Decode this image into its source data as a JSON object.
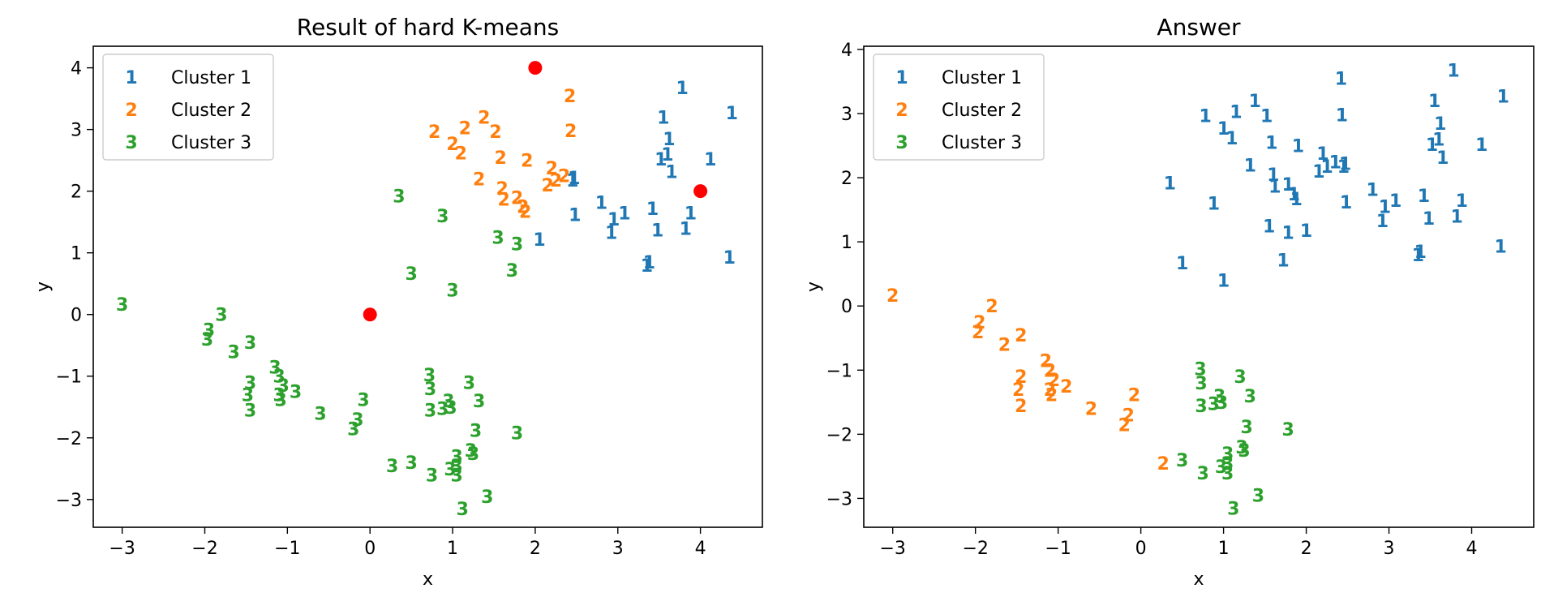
{
  "colors": {
    "cluster1": "#1f77b4",
    "cluster2": "#ff7f0e",
    "cluster3": "#2ca02c",
    "center": "#ff0000",
    "axis": "#000000",
    "legend_border": "#cccccc"
  },
  "chart_data": [
    {
      "type": "scatter",
      "title": "Result of hard K-means",
      "xlabel": "x",
      "ylabel": "y",
      "xlim": [
        -3.35,
        4.75
      ],
      "ylim": [
        -3.45,
        4.35
      ],
      "xticks": [
        -3,
        -2,
        -1,
        0,
        1,
        2,
        3,
        4
      ],
      "yticks": [
        -3,
        -2,
        -1,
        0,
        1,
        2,
        3,
        4
      ],
      "grid": false,
      "legend_position": "top-left",
      "marker_style": "cluster number glyph",
      "series": [
        {
          "name": "Cluster 1",
          "marker": "1",
          "points": [
            [
              2.45,
              2.18
            ],
            [
              2.48,
              1.62
            ],
            [
              2.05,
              1.22
            ],
            [
              2.8,
              1.82
            ],
            [
              2.92,
              1.33
            ],
            [
              2.95,
              1.55
            ],
            [
              3.08,
              1.65
            ],
            [
              3.35,
              0.8
            ],
            [
              3.38,
              0.85
            ],
            [
              3.42,
              1.72
            ],
            [
              3.48,
              1.37
            ],
            [
              3.52,
              2.52
            ],
            [
              3.55,
              3.2
            ],
            [
              3.6,
              2.6
            ],
            [
              3.62,
              2.85
            ],
            [
              3.65,
              2.32
            ],
            [
              3.78,
              3.68
            ],
            [
              3.82,
              1.4
            ],
            [
              3.88,
              1.65
            ],
            [
              4.12,
              2.52
            ],
            [
              4.35,
              0.93
            ],
            [
              4.38,
              3.27
            ],
            [
              2.47,
              2.22
            ]
          ]
        },
        {
          "name": "Cluster 2",
          "marker": "2",
          "points": [
            [
              0.78,
              2.97
            ],
            [
              1.0,
              2.77
            ],
            [
              1.1,
              2.62
            ],
            [
              1.15,
              3.03
            ],
            [
              1.32,
              2.2
            ],
            [
              1.38,
              3.2
            ],
            [
              1.52,
              2.97
            ],
            [
              1.58,
              2.55
            ],
            [
              1.6,
              2.05
            ],
            [
              1.62,
              1.87
            ],
            [
              1.78,
              1.9
            ],
            [
              1.85,
              1.75
            ],
            [
              1.88,
              1.67
            ],
            [
              1.9,
              2.5
            ],
            [
              2.15,
              2.1
            ],
            [
              2.2,
              2.38
            ],
            [
              2.25,
              2.18
            ],
            [
              2.35,
              2.25
            ],
            [
              2.42,
              3.55
            ],
            [
              2.43,
              2.98
            ]
          ]
        },
        {
          "name": "Cluster 3",
          "marker": "3",
          "points": [
            [
              -3.0,
              0.17
            ],
            [
              -1.97,
              -0.4
            ],
            [
              -1.95,
              -0.25
            ],
            [
              -1.8,
              0.0
            ],
            [
              -1.65,
              -0.6
            ],
            [
              -1.45,
              -0.45
            ],
            [
              -1.45,
              -1.1
            ],
            [
              -1.48,
              -1.3
            ],
            [
              -1.45,
              -1.55
            ],
            [
              -1.15,
              -0.85
            ],
            [
              -1.1,
              -1.0
            ],
            [
              -1.05,
              -1.15
            ],
            [
              -1.1,
              -1.3
            ],
            [
              -1.08,
              -1.38
            ],
            [
              -0.9,
              -1.25
            ],
            [
              -0.6,
              -1.6
            ],
            [
              -0.15,
              -1.7
            ],
            [
              -0.2,
              -1.85
            ],
            [
              -0.08,
              -1.38
            ],
            [
              0.27,
              -2.45
            ],
            [
              0.35,
              1.92
            ],
            [
              0.5,
              -2.4
            ],
            [
              0.5,
              0.67
            ],
            [
              0.72,
              -0.98
            ],
            [
              0.73,
              -1.2
            ],
            [
              0.73,
              -1.55
            ],
            [
              0.75,
              -2.6
            ],
            [
              0.88,
              -1.52
            ],
            [
              0.88,
              1.6
            ],
            [
              0.95,
              -1.4
            ],
            [
              0.98,
              -1.5
            ],
            [
              0.97,
              -2.5
            ],
            [
              1.0,
              0.4
            ],
            [
              1.05,
              -2.3
            ],
            [
              1.05,
              -2.45
            ],
            [
              1.05,
              -2.6
            ],
            [
              1.12,
              -3.15
            ],
            [
              1.2,
              -1.1
            ],
            [
              1.22,
              -2.2
            ],
            [
              1.25,
              -2.25
            ],
            [
              1.28,
              -1.88
            ],
            [
              1.32,
              -1.4
            ],
            [
              1.42,
              -2.95
            ],
            [
              1.55,
              1.25
            ],
            [
              1.72,
              0.72
            ],
            [
              1.78,
              1.15
            ],
            [
              1.78,
              -1.92
            ]
          ]
        },
        {
          "name": "",
          "marker": "filled circle",
          "color": "#ff0000",
          "points": [
            [
              0,
              0
            ],
            [
              2,
              4
            ],
            [
              4,
              2
            ]
          ]
        }
      ]
    },
    {
      "type": "scatter",
      "title": "Answer",
      "xlabel": "x",
      "ylabel": "y",
      "xlim": [
        -3.35,
        4.75
      ],
      "ylim": [
        -3.45,
        4.05
      ],
      "xticks": [
        -3,
        -2,
        -1,
        0,
        1,
        2,
        3,
        4
      ],
      "yticks": [
        -3,
        -2,
        -1,
        0,
        1,
        2,
        3,
        4
      ],
      "grid": false,
      "legend_position": "top-left",
      "marker_style": "cluster number glyph",
      "series": [
        {
          "name": "Cluster 1",
          "marker": "1",
          "points": [
            [
              0.35,
              1.92
            ],
            [
              0.5,
              0.67
            ],
            [
              0.88,
              1.6
            ],
            [
              0.78,
              2.97
            ],
            [
              1.0,
              2.77
            ],
            [
              1.0,
              0.4
            ],
            [
              1.1,
              2.62
            ],
            [
              1.15,
              3.03
            ],
            [
              1.32,
              2.2
            ],
            [
              1.38,
              3.2
            ],
            [
              1.52,
              2.97
            ],
            [
              1.55,
              1.25
            ],
            [
              1.58,
              2.55
            ],
            [
              1.6,
              2.05
            ],
            [
              1.62,
              1.87
            ],
            [
              1.72,
              0.72
            ],
            [
              1.78,
              1.9
            ],
            [
              1.78,
              1.15
            ],
            [
              1.85,
              1.75
            ],
            [
              1.88,
              1.67
            ],
            [
              1.9,
              2.5
            ],
            [
              2.0,
              1.18
            ],
            [
              2.15,
              2.1
            ],
            [
              2.2,
              2.38
            ],
            [
              2.25,
              2.18
            ],
            [
              2.35,
              2.25
            ],
            [
              2.42,
              3.55
            ],
            [
              2.43,
              2.98
            ],
            [
              2.45,
              2.18
            ],
            [
              2.48,
              1.62
            ],
            [
              2.8,
              1.82
            ],
            [
              2.92,
              1.33
            ],
            [
              2.95,
              1.55
            ],
            [
              3.08,
              1.65
            ],
            [
              3.35,
              0.8
            ],
            [
              3.38,
              0.85
            ],
            [
              3.42,
              1.72
            ],
            [
              3.48,
              1.37
            ],
            [
              3.52,
              2.52
            ],
            [
              3.55,
              3.2
            ],
            [
              3.6,
              2.6
            ],
            [
              3.62,
              2.85
            ],
            [
              3.65,
              2.32
            ],
            [
              3.78,
              3.68
            ],
            [
              3.82,
              1.4
            ],
            [
              3.88,
              1.65
            ],
            [
              4.12,
              2.52
            ],
            [
              4.35,
              0.93
            ],
            [
              4.38,
              3.27
            ],
            [
              2.47,
              2.22
            ]
          ]
        },
        {
          "name": "Cluster 2",
          "marker": "2",
          "points": [
            [
              -3.0,
              0.17
            ],
            [
              -1.97,
              -0.4
            ],
            [
              -1.95,
              -0.25
            ],
            [
              -1.8,
              0.0
            ],
            [
              -1.65,
              -0.6
            ],
            [
              -1.45,
              -0.45
            ],
            [
              -1.45,
              -1.1
            ],
            [
              -1.48,
              -1.3
            ],
            [
              -1.45,
              -1.55
            ],
            [
              -1.15,
              -0.85
            ],
            [
              -1.1,
              -1.0
            ],
            [
              -1.05,
              -1.15
            ],
            [
              -1.1,
              -1.3
            ],
            [
              -1.08,
              -1.38
            ],
            [
              -0.9,
              -1.25
            ],
            [
              -0.6,
              -1.6
            ],
            [
              -0.15,
              -1.7
            ],
            [
              -0.2,
              -1.85
            ],
            [
              -0.08,
              -1.38
            ],
            [
              0.27,
              -2.45
            ]
          ]
        },
        {
          "name": "Cluster 3",
          "marker": "3",
          "points": [
            [
              0.5,
              -2.4
            ],
            [
              0.72,
              -0.98
            ],
            [
              0.73,
              -1.2
            ],
            [
              0.73,
              -1.55
            ],
            [
              0.75,
              -2.6
            ],
            [
              0.88,
              -1.52
            ],
            [
              0.95,
              -1.4
            ],
            [
              0.98,
              -1.5
            ],
            [
              0.97,
              -2.5
            ],
            [
              1.05,
              -2.3
            ],
            [
              1.05,
              -2.45
            ],
            [
              1.05,
              -2.6
            ],
            [
              1.12,
              -3.15
            ],
            [
              1.2,
              -1.1
            ],
            [
              1.22,
              -2.2
            ],
            [
              1.25,
              -2.25
            ],
            [
              1.28,
              -1.88
            ],
            [
              1.32,
              -1.4
            ],
            [
              1.42,
              -2.95
            ],
            [
              1.78,
              -1.92
            ]
          ]
        }
      ]
    }
  ]
}
